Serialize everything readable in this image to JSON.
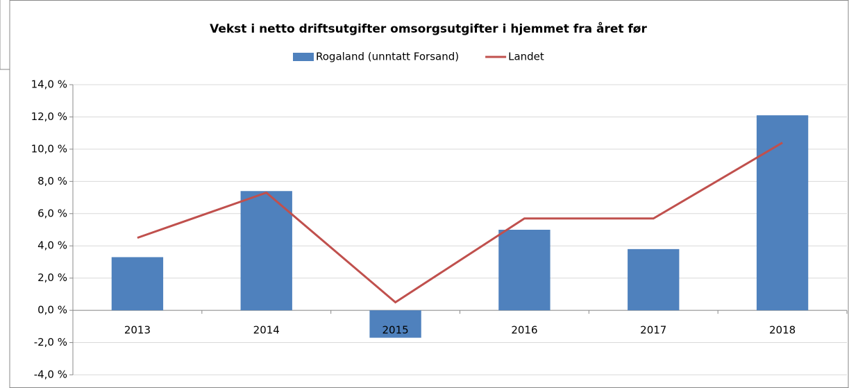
{
  "chart_data": {
    "type": "bar",
    "title": "Vekst i netto driftsutgifter omsorgsutgifter i hjemmet fra året før",
    "categories": [
      "2013",
      "2014",
      "2015",
      "2016",
      "2017",
      "2018"
    ],
    "series": [
      {
        "name": "Rogaland (unntatt Forsand)",
        "type": "bar",
        "color": "#4f81bd",
        "values": [
          3.3,
          7.4,
          -1.7,
          5.0,
          3.8,
          12.1
        ]
      },
      {
        "name": "Landet",
        "type": "line",
        "color": "#c0504d",
        "values": [
          4.5,
          7.3,
          0.5,
          5.7,
          5.7,
          10.4
        ]
      }
    ],
    "ylim": [
      -4,
      14
    ],
    "yticks": [
      {
        "value": -4,
        "label": "-4,0 %"
      },
      {
        "value": -2,
        "label": "-2,0 %"
      },
      {
        "value": 0,
        "label": "0,0 %"
      },
      {
        "value": 2,
        "label": "2,0 %"
      },
      {
        "value": 4,
        "label": "4,0 %"
      },
      {
        "value": 6,
        "label": "6,0 %"
      },
      {
        "value": 8,
        "label": "8,0 %"
      },
      {
        "value": 10,
        "label": "10,0 %"
      },
      {
        "value": 12,
        "label": "12,0 %"
      },
      {
        "value": 14,
        "label": "14,0 %"
      }
    ],
    "grid": true,
    "legend": "top"
  }
}
